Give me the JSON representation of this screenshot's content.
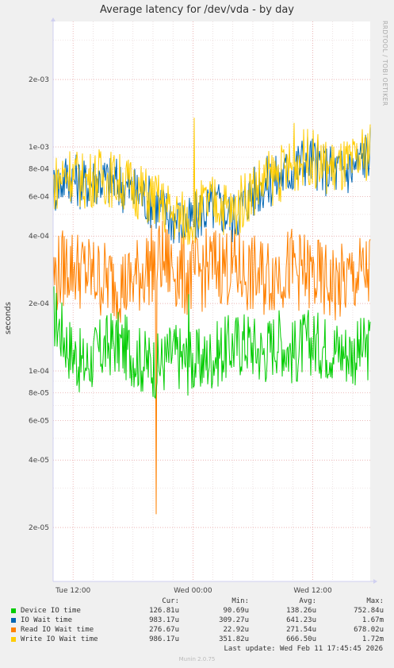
{
  "chart_data": {
    "type": "line",
    "title": "Average latency for /dev/vda - by day",
    "ylabel": "seconds",
    "yscale": "log",
    "ylim": [
      1.5e-05,
      0.003
    ],
    "y_ticks": [
      {
        "value": 2e-05,
        "label": "2e-05"
      },
      {
        "value": 4e-05,
        "label": "4e-05"
      },
      {
        "value": 6e-05,
        "label": "6e-05"
      },
      {
        "value": 8e-05,
        "label": "8e-05"
      },
      {
        "value": 0.0001,
        "label": "1e-04"
      },
      {
        "value": 0.0002,
        "label": "2e-04"
      },
      {
        "value": 0.0004,
        "label": "4e-04"
      },
      {
        "value": 0.0006,
        "label": "6e-04"
      },
      {
        "value": 0.0008,
        "label": "8e-04"
      },
      {
        "value": 0.001,
        "label": "1e-03"
      },
      {
        "value": 0.002,
        "label": "2e-03"
      }
    ],
    "x_ticks": [
      "Tue 12:00",
      "Wed 00:00",
      "Wed 12:00"
    ],
    "x_start": "Tue 10:00",
    "x_end": "Wed 17:45",
    "x_hours": [
      0,
      1.5,
      3,
      4.5,
      6,
      7.5,
      9,
      10.5,
      12,
      13.5,
      15,
      16.5,
      18,
      19.5,
      21,
      22.5,
      24,
      25.5,
      27,
      28.5,
      30,
      31.75
    ],
    "series": [
      {
        "name": "Device IO time",
        "color": "#00cc00",
        "values": [
          0.00018,
          0.00013,
          0.000105,
          0.00012,
          0.000135,
          0.000125,
          0.00011,
          0.000105,
          0.00012,
          0.00011,
          0.00011,
          0.00012,
          0.00013,
          0.000135,
          0.00012,
          0.00014,
          0.00012,
          0.000135,
          0.00013,
          0.000125,
          0.00012,
          0.000127
        ]
      },
      {
        "name": "IO Wait time",
        "color": "#0066b3",
        "values": [
          0.00065,
          0.00075,
          0.00068,
          0.00072,
          0.0007,
          0.00065,
          0.0006,
          0.00055,
          0.00048,
          0.00045,
          0.00052,
          0.00055,
          0.00048,
          0.0006,
          0.00068,
          0.00072,
          0.0008,
          0.0009,
          0.0008,
          0.00078,
          0.0008,
          0.00098317
        ]
      },
      {
        "name": "Read IO Wait time",
        "color": "#ff8000",
        "values": [
          0.00026,
          0.0003,
          0.00028,
          0.00026,
          0.00025,
          0.00024,
          0.00028,
          0.00032,
          0.00029,
          0.00026,
          0.00028,
          0.0003,
          0.00029,
          0.00027,
          0.00026,
          0.00028,
          0.00029,
          0.00027,
          0.00025,
          0.00024,
          0.00026,
          0.00027667
        ]
      },
      {
        "name": "Write IO Wait time",
        "color": "#ffcc00",
        "values": [
          0.00068,
          0.00078,
          0.0007,
          0.00074,
          0.00072,
          0.00068,
          0.00062,
          0.00057,
          0.0005,
          0.00047,
          0.00054,
          0.00057,
          0.0005,
          0.00062,
          0.0007,
          0.00075,
          0.00082,
          0.00092,
          0.00082,
          0.0008,
          0.00082,
          0.00098617
        ]
      }
    ],
    "spikes": [
      {
        "series": "Read IO Wait time",
        "x_hour": 10.3,
        "value": 2.292e-05
      },
      {
        "series": "Write IO Wait time",
        "x_hour": 14.1,
        "value": 0.00135
      },
      {
        "series": "Write IO Wait time",
        "x_hour": 24.1,
        "value": 0.00128
      },
      {
        "series": "Device IO time",
        "x_hour": 13.6,
        "value": 0.00022
      }
    ],
    "grid": true
  },
  "legend": {
    "headers": {
      "cur": "Cur:",
      "min": "Min:",
      "avg": "Avg:",
      "max": "Max:"
    },
    "rows": [
      {
        "name": "Device IO time",
        "cur": "126.81u",
        "min": "90.69u",
        "avg": "138.26u",
        "max": "752.84u",
        "color": "#00cc00"
      },
      {
        "name": "IO Wait time",
        "cur": "983.17u",
        "min": "309.27u",
        "avg": "641.23u",
        "max": "1.67m",
        "color": "#0066b3"
      },
      {
        "name": "Read IO Wait time",
        "cur": "276.67u",
        "min": "22.92u",
        "avg": "271.54u",
        "max": "678.02u",
        "color": "#ff8000"
      },
      {
        "name": "Write IO Wait time",
        "cur": "986.17u",
        "min": "351.82u",
        "avg": "666.50u",
        "max": "1.72m",
        "color": "#ffcc00"
      }
    ]
  },
  "last_update": "Last update: Wed Feb 11 17:45:45 2026",
  "munin_version": "Munin 2.0.75",
  "side_credit": "RRDTOOL / TOBI OETIKER"
}
